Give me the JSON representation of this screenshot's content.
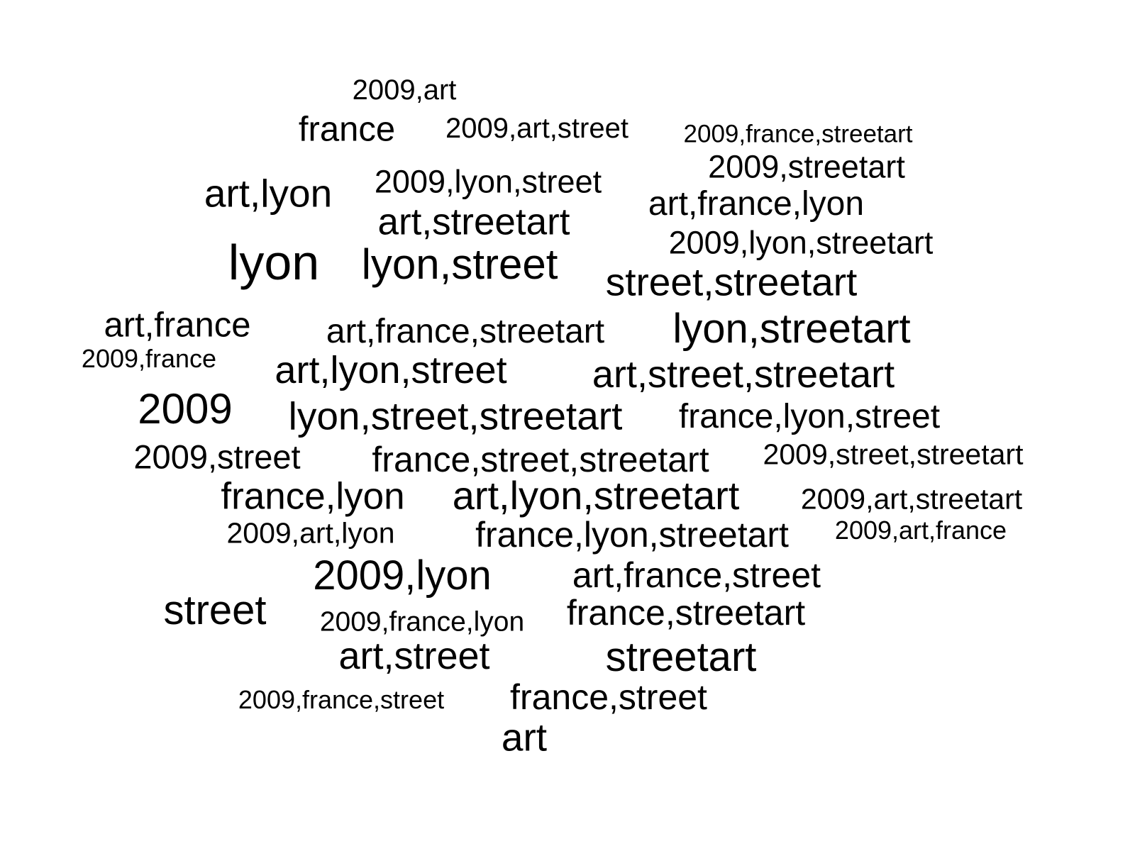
{
  "cloud": {
    "words": [
      "2009,art",
      "france",
      "2009,art,street",
      "2009,france,streetart",
      "2009,streetart",
      "art,lyon",
      "2009,lyon,street",
      "art,streetart",
      "art,france,lyon",
      "2009,lyon,streetart",
      "lyon",
      "lyon,street",
      "street,streetart",
      "art,france",
      "art,france,streetart",
      "lyon,streetart",
      "2009,france",
      "art,lyon,street",
      "art,street,streetart",
      "2009",
      "lyon,street,streetart",
      "france,lyon,street",
      "2009,street",
      "france,street,streetart",
      "2009,street,streetart",
      "france,lyon",
      "art,lyon,streetart",
      "2009,art,streetart",
      "2009,art,lyon",
      "france,lyon,streetart",
      "2009,art,france",
      "2009,lyon",
      "art,france,street",
      "street",
      "2009,france,lyon",
      "france,streetart",
      "art,street",
      "streetart",
      "2009,france,street",
      "france,street",
      "art"
    ]
  }
}
